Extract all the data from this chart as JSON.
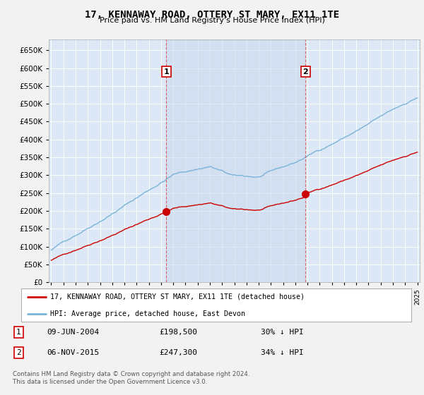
{
  "title": "17, KENNAWAY ROAD, OTTERY ST MARY, EX11 1TE",
  "subtitle": "Price paid vs. HM Land Registry's House Price Index (HPI)",
  "legend_line1": "17, KENNAWAY ROAD, OTTERY ST MARY, EX11 1TE (detached house)",
  "legend_line2": "HPI: Average price, detached house, East Devon",
  "transaction1_date": "09-JUN-2004",
  "transaction1_price": "£198,500",
  "transaction1_hpi": "30% ↓ HPI",
  "transaction2_date": "06-NOV-2015",
  "transaction2_price": "£247,300",
  "transaction2_hpi": "34% ↓ HPI",
  "hpi_color": "#7ab4d8",
  "price_color": "#cc0000",
  "vline_color": "#dd4444",
  "plot_bg_color": "#dce8f5",
  "grid_color": "#c8d8e8",
  "shade_color": "#cddff0",
  "footnote": "Contains HM Land Registry data © Crown copyright and database right 2024.\nThis data is licensed under the Open Government Licence v3.0.",
  "ylim": [
    0,
    680000
  ],
  "yticks": [
    0,
    50000,
    100000,
    150000,
    200000,
    250000,
    300000,
    350000,
    400000,
    450000,
    500000,
    550000,
    600000,
    650000
  ],
  "xstart_year": 1995,
  "xend_year": 2025,
  "transaction1_year": 2004.44,
  "transaction2_year": 2015.84,
  "transaction1_price_val": 198500,
  "transaction2_price_val": 247300
}
